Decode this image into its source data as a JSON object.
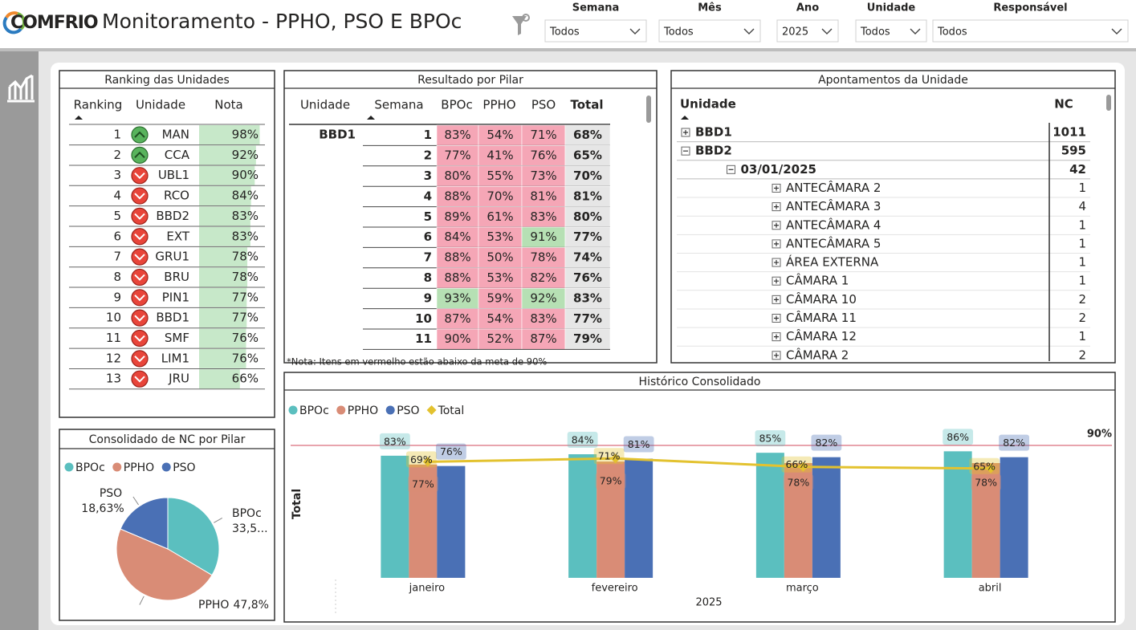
{
  "header": {
    "logo": "COMFRIO",
    "title": "Monitoramento - PPHO, PSO E BPOc"
  },
  "filters": [
    {
      "label": "Semana",
      "value": "Todos"
    },
    {
      "label": "Mês",
      "value": "Todos"
    },
    {
      "label": "Ano",
      "value": "2025"
    },
    {
      "label": "Unidade",
      "value": "Todos"
    },
    {
      "label": "Responsável",
      "value": "Todos"
    }
  ],
  "ranking": {
    "title": "Ranking das Unidades",
    "columns": [
      "Ranking",
      "Unidade",
      "Nota"
    ],
    "rows": [
      {
        "rank": 1,
        "trend": "up",
        "unit": "MAN",
        "nota": 98,
        "nota_label": "98%"
      },
      {
        "rank": 2,
        "trend": "up",
        "unit": "CCA",
        "nota": 92,
        "nota_label": "92%"
      },
      {
        "rank": 3,
        "trend": "down",
        "unit": "UBL1",
        "nota": 90,
        "nota_label": "90%"
      },
      {
        "rank": 4,
        "trend": "down",
        "unit": "RCO",
        "nota": 84,
        "nota_label": "84%"
      },
      {
        "rank": 5,
        "trend": "down",
        "unit": "BBD2",
        "nota": 83,
        "nota_label": "83%"
      },
      {
        "rank": 6,
        "trend": "down",
        "unit": "EXT",
        "nota": 83,
        "nota_label": "83%"
      },
      {
        "rank": 7,
        "trend": "down",
        "unit": "GRU1",
        "nota": 78,
        "nota_label": "78%"
      },
      {
        "rank": 8,
        "trend": "down",
        "unit": "BRU",
        "nota": 78,
        "nota_label": "78%"
      },
      {
        "rank": 9,
        "trend": "down",
        "unit": "PIN1",
        "nota": 77,
        "nota_label": "77%"
      },
      {
        "rank": 10,
        "trend": "down",
        "unit": "BBD1",
        "nota": 77,
        "nota_label": "77%"
      },
      {
        "rank": 11,
        "trend": "down",
        "unit": "SMF",
        "nota": 76,
        "nota_label": "76%"
      },
      {
        "rank": 12,
        "trend": "down",
        "unit": "LIM1",
        "nota": 76,
        "nota_label": "76%"
      },
      {
        "rank": 13,
        "trend": "down",
        "unit": "JRU",
        "nota": 66,
        "nota_label": "66%"
      }
    ]
  },
  "pilar": {
    "title": "Resultado por Pilar",
    "columns": [
      "Unidade",
      "Semana",
      "BPOc",
      "PPHO",
      "PSO",
      "Total"
    ],
    "unit": "BBD1",
    "rows": [
      {
        "week": 1,
        "values": [
          "83%",
          "54%",
          "71%",
          "68%"
        ],
        "meta_ok": []
      },
      {
        "week": 2,
        "values": [
          "77%",
          "41%",
          "76%",
          "65%"
        ],
        "meta_ok": []
      },
      {
        "week": 3,
        "values": [
          "80%",
          "55%",
          "73%",
          "70%"
        ],
        "meta_ok": []
      },
      {
        "week": 4,
        "values": [
          "88%",
          "70%",
          "81%",
          "81%"
        ],
        "meta_ok": []
      },
      {
        "week": 5,
        "values": [
          "89%",
          "61%",
          "83%",
          "80%"
        ],
        "meta_ok": []
      },
      {
        "week": 6,
        "values": [
          "84%",
          "53%",
          "91%",
          "77%"
        ],
        "meta_ok": [
          2
        ]
      },
      {
        "week": 7,
        "values": [
          "88%",
          "50%",
          "78%",
          "74%"
        ],
        "meta_ok": []
      },
      {
        "week": 8,
        "values": [
          "88%",
          "53%",
          "82%",
          "76%"
        ],
        "meta_ok": []
      },
      {
        "week": 9,
        "values": [
          "93%",
          "59%",
          "92%",
          "83%"
        ],
        "meta_ok": [
          0,
          2
        ]
      },
      {
        "week": 10,
        "values": [
          "87%",
          "54%",
          "83%",
          "77%"
        ],
        "meta_ok": []
      },
      {
        "week": 11,
        "values": [
          "90%",
          "52%",
          "87%",
          "79%"
        ],
        "meta_ok": []
      }
    ],
    "note": "*Nota: Itens em vermelho estão abaixo da meta de 90%"
  },
  "apontamentos": {
    "title": "Apontamentos da Unidade",
    "columns": [
      "Unidade",
      "NC"
    ],
    "rows": [
      {
        "label": "BBD1",
        "nc": 1011,
        "level": 0,
        "expanded": false
      },
      {
        "label": "BBD2",
        "nc": 595,
        "level": 0,
        "expanded": true
      },
      {
        "label": "03/01/2025",
        "nc": 42,
        "level": 1,
        "expanded": true
      },
      {
        "label": "ANTECÂMARA 2",
        "nc": 1,
        "level": 2,
        "expanded": false
      },
      {
        "label": "ANTECÂMARA 3",
        "nc": 4,
        "level": 2,
        "expanded": false
      },
      {
        "label": "ANTECÂMARA 4",
        "nc": 1,
        "level": 2,
        "expanded": false
      },
      {
        "label": "ANTECÂMARA 5",
        "nc": 1,
        "level": 2,
        "expanded": false
      },
      {
        "label": "ÁREA EXTERNA",
        "nc": 1,
        "level": 2,
        "expanded": false
      },
      {
        "label": "CÂMARA 1",
        "nc": 1,
        "level": 2,
        "expanded": false
      },
      {
        "label": "CÂMARA 10",
        "nc": 2,
        "level": 2,
        "expanded": false
      },
      {
        "label": "CÂMARA 11",
        "nc": 2,
        "level": 2,
        "expanded": false
      },
      {
        "label": "CÂMARA 12",
        "nc": 1,
        "level": 2,
        "expanded": false
      },
      {
        "label": "CÂMARA 2",
        "nc": 2,
        "level": 2,
        "expanded": false
      }
    ]
  },
  "chart_data": [
    {
      "type": "pie",
      "title": "Consolidado de NC por Pilar",
      "categories": [
        "BPOc",
        "PPHO",
        "PSO"
      ],
      "values": [
        33.5,
        47.8,
        18.63
      ],
      "value_labels": [
        "33,5...",
        "47,8%",
        "18,63%"
      ],
      "colors": [
        "#5bbfbf",
        "#d98c76",
        "#4a70b5"
      ]
    },
    {
      "type": "bar",
      "title": "Histórico Consolidado",
      "categories": [
        "janeiro",
        "fevereiro",
        "março",
        "abril"
      ],
      "x_label": "2025",
      "y_label": "Total",
      "ylim": [
        0,
        120
      ],
      "y2lim": [
        0,
        105
      ],
      "series": [
        {
          "name": "BPOc",
          "color": "#5bbfbf",
          "values": [
            83,
            84,
            85,
            86
          ],
          "value_labels": [
            "83%",
            "84%",
            "85%",
            "86%"
          ]
        },
        {
          "name": "PPHO",
          "color": "#d98c76",
          "values": [
            77,
            79,
            78,
            78
          ],
          "value_labels": [
            "77%",
            "79%",
            "78%",
            "78%"
          ]
        },
        {
          "name": "PSO",
          "color": "#4a70b5",
          "values": [
            76,
            81,
            82,
            82
          ],
          "value_labels": [
            "76%",
            "81%",
            "82%",
            "82%"
          ]
        },
        {
          "name": "Total",
          "type": "line",
          "axis": "y2",
          "color": "#e3c22f",
          "values": [
            69,
            71,
            66,
            65
          ],
          "value_labels": [
            "69%",
            "71%",
            "66%",
            "65%"
          ]
        }
      ],
      "reference_line": {
        "value": 90,
        "label": "90%",
        "color": "#d1495b"
      }
    }
  ]
}
